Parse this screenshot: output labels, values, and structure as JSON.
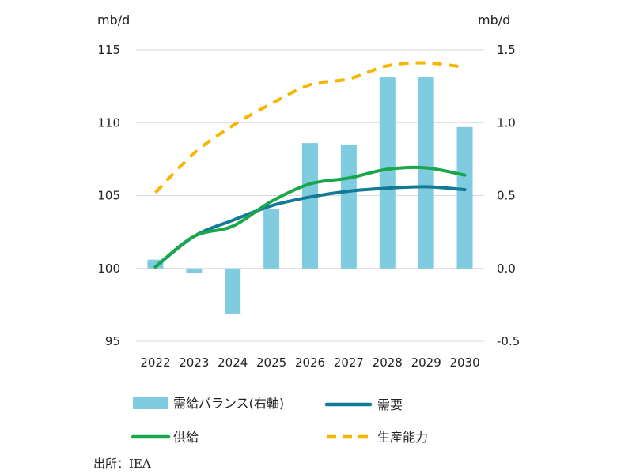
{
  "colors": {
    "balance": "#7FCCE0",
    "demand": "#137A96",
    "supply": "#18A84B",
    "capacity": "#F7B500",
    "grid": "#D9D9D9",
    "text": "#222222"
  },
  "chart_data": {
    "type": "bar+line",
    "categories": [
      "2022",
      "2023",
      "2024",
      "2025",
      "2026",
      "2027",
      "2028",
      "2029",
      "2030"
    ],
    "left_axis": {
      "unit": "mb/d",
      "range": [
        95,
        115
      ],
      "ticks": [
        "95",
        "100",
        "105",
        "110",
        "115"
      ]
    },
    "right_axis": {
      "unit": "mb/d",
      "range": [
        -0.5,
        1.5
      ],
      "ticks": [
        "-0.5",
        "0.0",
        "0.5",
        "1.0",
        "1.5"
      ]
    },
    "series": [
      {
        "key": "balance",
        "name": "需給バランス(右軸)",
        "type": "bar",
        "axis": "right",
        "values": [
          0.06,
          -0.03,
          -0.31,
          0.41,
          0.86,
          0.85,
          1.31,
          1.31,
          0.97
        ]
      },
      {
        "key": "demand",
        "name": "需要",
        "type": "line",
        "axis": "left",
        "values": [
          100.1,
          102.2,
          103.3,
          104.3,
          104.9,
          105.3,
          105.5,
          105.6,
          105.4
        ]
      },
      {
        "key": "supply",
        "name": "供給",
        "type": "line",
        "axis": "left",
        "values": [
          100.1,
          102.2,
          102.9,
          104.6,
          105.8,
          106.2,
          106.8,
          106.9,
          106.4
        ]
      },
      {
        "key": "capacity",
        "name": "生産能力",
        "type": "dashed-line",
        "axis": "left",
        "values": [
          105.2,
          107.9,
          109.8,
          111.3,
          112.6,
          113.0,
          113.9,
          114.1,
          113.8
        ]
      }
    ],
    "legend_position": "bottom",
    "grid": true
  },
  "source_note": "出所：IEA"
}
